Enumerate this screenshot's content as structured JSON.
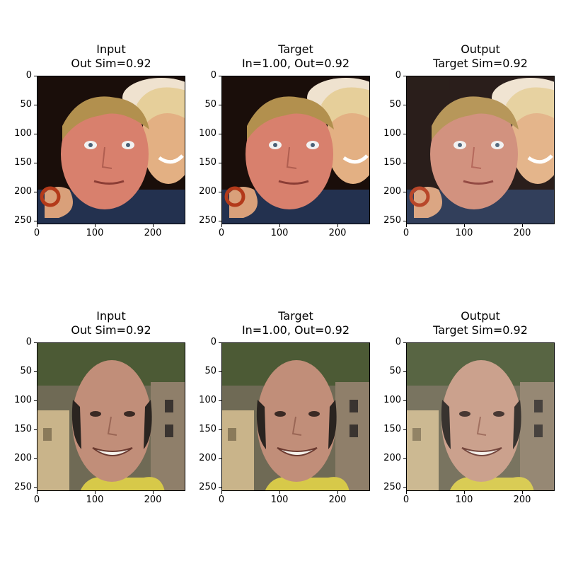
{
  "chart_data": {
    "type": "image_grid",
    "grid": {
      "rows": 2,
      "cols": 3
    },
    "image_extent": {
      "x": [
        0,
        256
      ],
      "y": [
        0,
        256
      ]
    },
    "xticks": [
      0,
      100,
      200
    ],
    "yticks": [
      0,
      50,
      100,
      150,
      200,
      250
    ],
    "panels": [
      {
        "id": "r1c1",
        "title_line1": "Input",
        "title_line2": "Out Sim=0.92",
        "image": "face-man-with-blond-woman"
      },
      {
        "id": "r1c2",
        "title_line1": "Target",
        "title_line2": "In=1.00, Out=0.92",
        "image": "face-man-with-blond-woman"
      },
      {
        "id": "r1c3",
        "title_line1": "Output",
        "title_line2": "Target Sim=0.92",
        "image": "face-man-with-blond-woman-generated"
      },
      {
        "id": "r2c1",
        "title_line1": "Input",
        "title_line2": "Out Sim=0.92",
        "image": "face-bald-smiling-man"
      },
      {
        "id": "r2c2",
        "title_line1": "Target",
        "title_line2": "In=1.00, Out=0.92",
        "image": "face-bald-smiling-man"
      },
      {
        "id": "r2c3",
        "title_line1": "Output",
        "title_line2": "Target Sim=0.92",
        "image": "face-bald-smiling-man-generated"
      }
    ]
  }
}
